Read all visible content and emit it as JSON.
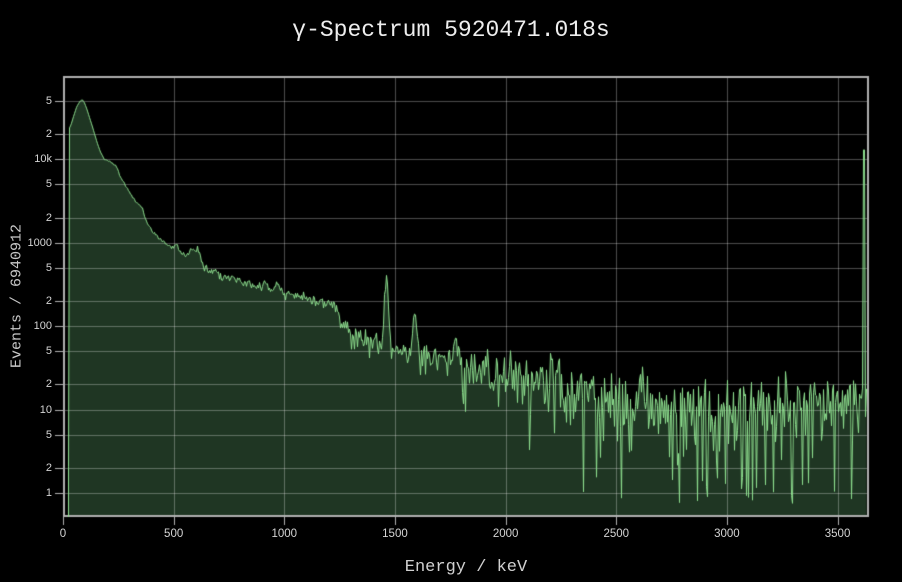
{
  "page": {
    "background": "#000000"
  },
  "chart_data": {
    "type": "area",
    "title": "γ-Spectrum 5920471.018s",
    "xlabel": "Energy / keV",
    "ylabel": "Events / 6940912",
    "grid": true,
    "legend_position": "none",
    "stats": {
      "total_events": 6940912,
      "duration_s": 5920471.018
    },
    "x_axis": {
      "scale": "linear",
      "min": 0,
      "max": 3642,
      "unit": "keV",
      "ticks": [
        {
          "value": 0,
          "label": "0"
        },
        {
          "value": 500,
          "label": "500"
        },
        {
          "value": 1000,
          "label": "1000"
        },
        {
          "value": 1500,
          "label": "1500"
        },
        {
          "value": 2000,
          "label": "2000"
        },
        {
          "value": 2500,
          "label": "2500"
        },
        {
          "value": 3000,
          "label": "3000"
        },
        {
          "value": 3500,
          "label": "3500"
        }
      ]
    },
    "y_axis": {
      "scale": "log",
      "min": 0.515,
      "max": 100000,
      "unit": "events",
      "ticks": [
        {
          "value": 1,
          "label": "1"
        },
        {
          "value": 2,
          "label": "2"
        },
        {
          "value": 5,
          "label": "5"
        },
        {
          "value": 10,
          "label": "10"
        },
        {
          "value": 20,
          "label": "2"
        },
        {
          "value": 50,
          "label": "5"
        },
        {
          "value": 100,
          "label": "100"
        },
        {
          "value": 200,
          "label": "2"
        },
        {
          "value": 500,
          "label": "5"
        },
        {
          "value": 1000,
          "label": "1000"
        },
        {
          "value": 2000,
          "label": "2"
        },
        {
          "value": 5000,
          "label": "5"
        },
        {
          "value": 10000,
          "label": "10k"
        },
        {
          "value": 20000,
          "label": "2"
        },
        {
          "value": 50000,
          "label": "5"
        }
      ]
    },
    "colors": {
      "background": "#000000",
      "line": "#8ee08f",
      "fill": "#1f3623",
      "grid": "rgba(255,255,255,0.30)",
      "axis_border": "#b0b0b0",
      "tick_text": "#d4d4d4",
      "title_text": "#eeeeee",
      "axis_label_text": "#c8c8c8"
    },
    "series": [
      {
        "name": "gamma-spectrum",
        "range_kev": [
          23,
          3628
        ],
        "bin_kev": 4.5,
        "noise": "poisson",
        "backbone_points": [
          [
            23,
            0.9
          ],
          [
            26,
            23500
          ],
          [
            34,
            26000
          ],
          [
            45,
            32500
          ],
          [
            60,
            43000
          ],
          [
            75,
            50000
          ],
          [
            85,
            52000
          ],
          [
            95,
            47500
          ],
          [
            105,
            40500
          ],
          [
            118,
            31500
          ],
          [
            130,
            25000
          ],
          [
            142,
            19500
          ],
          [
            155,
            15000
          ],
          [
            170,
            11700
          ],
          [
            185,
            10000
          ],
          [
            200,
            9700
          ],
          [
            213,
            9400
          ],
          [
            224,
            8700
          ],
          [
            235,
            7600
          ],
          [
            248,
            6700
          ],
          [
            262,
            5900
          ],
          [
            280,
            4900
          ],
          [
            300,
            4000
          ],
          [
            320,
            3300
          ],
          [
            340,
            2750
          ],
          [
            360,
            2150
          ],
          [
            380,
            1700
          ],
          [
            400,
            1380
          ],
          [
            420,
            1200
          ],
          [
            440,
            1080
          ],
          [
            465,
            980
          ],
          [
            490,
            900
          ],
          [
            515,
            810
          ],
          [
            540,
            730
          ],
          [
            565,
            670
          ],
          [
            592,
            615
          ],
          [
            615,
            565
          ],
          [
            640,
            510
          ],
          [
            665,
            470
          ],
          [
            690,
            440
          ],
          [
            720,
            405
          ],
          [
            750,
            375
          ],
          [
            780,
            352
          ],
          [
            810,
            332
          ],
          [
            840,
            318
          ],
          [
            870,
            302
          ],
          [
            900,
            290
          ],
          [
            930,
            276
          ],
          [
            960,
            260
          ],
          [
            1000,
            242
          ],
          [
            1040,
            228
          ],
          [
            1080,
            217
          ],
          [
            1120,
            209
          ],
          [
            1160,
            202
          ],
          [
            1200,
            196
          ],
          [
            1228,
            188
          ],
          [
            1238,
            155
          ],
          [
            1250,
            115
          ],
          [
            1262,
            95
          ],
          [
            1280,
            83
          ],
          [
            1305,
            77
          ],
          [
            1335,
            72
          ],
          [
            1365,
            69
          ],
          [
            1395,
            66
          ],
          [
            1425,
            63
          ],
          [
            1450,
            60
          ],
          [
            1478,
            56
          ],
          [
            1505,
            52
          ],
          [
            1535,
            49
          ],
          [
            1570,
            47
          ],
          [
            1610,
            45
          ],
          [
            1650,
            44
          ],
          [
            1695,
            42
          ],
          [
            1740,
            40
          ],
          [
            1790,
            37
          ],
          [
            1840,
            33.5
          ],
          [
            1890,
            31
          ],
          [
            1940,
            29
          ],
          [
            1990,
            27
          ],
          [
            2040,
            25
          ],
          [
            2090,
            23.5
          ],
          [
            2140,
            22
          ],
          [
            2190,
            20
          ],
          [
            2240,
            18.3
          ],
          [
            2290,
            16.6
          ],
          [
            2340,
            15
          ],
          [
            2390,
            13.6
          ],
          [
            2440,
            12.6
          ],
          [
            2490,
            12
          ],
          [
            2540,
            11.4
          ],
          [
            2590,
            11
          ],
          [
            2640,
            10.5
          ],
          [
            2700,
            10
          ],
          [
            2800,
            9.6
          ],
          [
            2900,
            9.3
          ],
          [
            3000,
            9.5
          ],
          [
            3100,
            9.8
          ],
          [
            3200,
            10
          ],
          [
            3300,
            10
          ],
          [
            3400,
            10.2
          ],
          [
            3500,
            10.5
          ],
          [
            3580,
            10.8
          ],
          [
            3628,
            11
          ]
        ],
        "peaks": [
          {
            "center_kev": 238,
            "sigma_kev": 7,
            "amplitude": 1000
          },
          {
            "center_kev": 352,
            "sigma_kev": 8,
            "amplitude": 380
          },
          {
            "center_kev": 511,
            "sigma_kev": 7,
            "amplitude": 130
          },
          {
            "center_kev": 583,
            "sigma_kev": 9,
            "amplitude": 260
          },
          {
            "center_kev": 609,
            "sigma_kev": 9,
            "amplitude": 280
          },
          {
            "center_kev": 911,
            "sigma_kev": 9,
            "amplitude": 75
          },
          {
            "center_kev": 969,
            "sigma_kev": 9,
            "amplitude": 42
          },
          {
            "center_kev": 1460,
            "sigma_kev": 7,
            "amplitude": 300
          },
          {
            "center_kev": 1588,
            "sigma_kev": 7,
            "amplitude": 95
          },
          {
            "center_kev": 1764,
            "sigma_kev": 8,
            "amplitude": 17
          },
          {
            "center_kev": 2204,
            "sigma_kev": 8,
            "amplitude": 7
          },
          {
            "center_kev": 2614,
            "sigma_kev": 9,
            "amplitude": 17
          }
        ],
        "overflow_spike": {
          "center_kev": 3615,
          "width_kev": 9,
          "events": 13000
        }
      }
    ]
  }
}
